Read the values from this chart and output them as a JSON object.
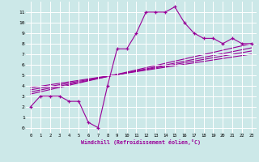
{
  "xlabel": "Windchill (Refroidissement éolien,°C)",
  "bg_color": "#cce8e8",
  "grid_color": "#ffffff",
  "line_color": "#990099",
  "xlim": [
    -0.5,
    23.5
  ],
  "ylim": [
    -0.5,
    12
  ],
  "xticks": [
    0,
    1,
    2,
    3,
    4,
    5,
    6,
    7,
    8,
    9,
    10,
    11,
    12,
    13,
    14,
    15,
    16,
    17,
    18,
    19,
    20,
    21,
    22,
    23
  ],
  "yticks": [
    0,
    1,
    2,
    3,
    4,
    5,
    6,
    7,
    8,
    9,
    10,
    11
  ],
  "zigzag_x": [
    0,
    1,
    2,
    3,
    4,
    5,
    6,
    7,
    8,
    9,
    10,
    11,
    12,
    13,
    14,
    15,
    16,
    17,
    18,
    19,
    20,
    21,
    22,
    23
  ],
  "zigzag_y": [
    2,
    3,
    3,
    3,
    2.5,
    2.5,
    0.5,
    0,
    4,
    7.5,
    7.5,
    9,
    11,
    11,
    11,
    11.5,
    10,
    9,
    8.5,
    8.5,
    8,
    8.5,
    8,
    8
  ],
  "line2_x": [
    0,
    23
  ],
  "line2_y": [
    3.2,
    8.0
  ],
  "line3_x": [
    0,
    23
  ],
  "line3_y": [
    3.4,
    7.6
  ],
  "line4_x": [
    0,
    23
  ],
  "line4_y": [
    3.6,
    7.3
  ],
  "line5_x": [
    0,
    23
  ],
  "line5_y": [
    3.8,
    7.0
  ]
}
